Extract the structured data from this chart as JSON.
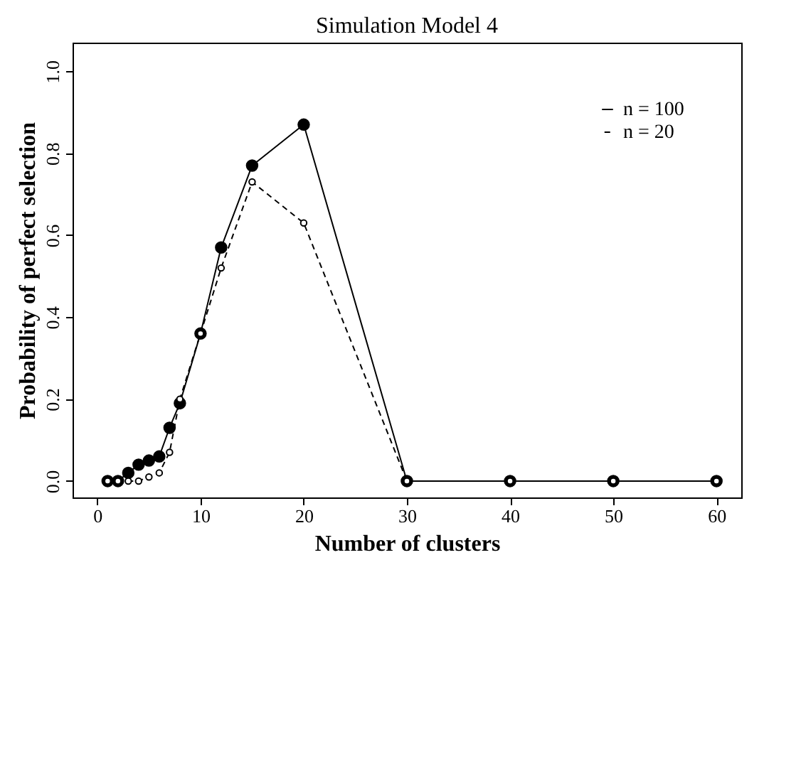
{
  "chart_data": {
    "type": "line",
    "title": "Simulation Model 4",
    "xlabel": "Number of clusters",
    "ylabel": "Probability of perfect selection",
    "xlim": [
      -2.4,
      62.4
    ],
    "xticks": [
      0,
      10,
      20,
      30,
      40,
      50,
      60
    ],
    "ylim": [
      -0.04,
      1.07
    ],
    "yticks": [
      {
        "value": 0,
        "label": "0.0"
      },
      0.2,
      0.4,
      0.6,
      0.8,
      {
        "value": 1,
        "label": "1.0"
      }
    ],
    "grid": false,
    "legend": "top right",
    "marker": "circle",
    "series": [
      {
        "name": "n = 100",
        "color": "#000000",
        "line_style": "solid",
        "x": [
          1,
          2,
          3,
          4,
          5,
          6,
          7,
          8,
          10,
          12,
          15,
          20,
          30,
          40,
          50,
          60
        ],
        "values": [
          0,
          0,
          0.02,
          0.04,
          0.05,
          0.06,
          0.13,
          0.19,
          0.36,
          0.57,
          0.77,
          0.87,
          0,
          0,
          0,
          0
        ]
      },
      {
        "name": "n = 20",
        "color": "#000000",
        "line_style": "dashed",
        "x": [
          1,
          2,
          3,
          4,
          5,
          6,
          7,
          8,
          10,
          12,
          15,
          20,
          30,
          40,
          50,
          60
        ],
        "values": [
          0,
          0,
          0,
          0,
          0.01,
          0.02,
          0.07,
          0.2,
          0.36,
          0.52,
          0.73,
          0.63,
          0,
          0,
          0,
          0
        ]
      }
    ]
  }
}
